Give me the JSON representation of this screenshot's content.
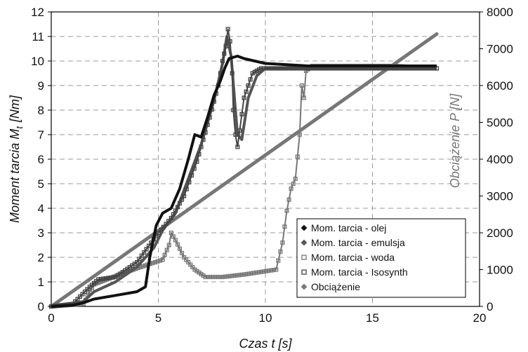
{
  "chart_data": {
    "type": "line",
    "xlabel": "Czas  t  [s]",
    "ylabel": "Moment tarcia  M",
    "ylabel_sub": "t",
    "ylabel_unit": "[Nm]",
    "y2label": "Obciążenie P [N]",
    "xlim": [
      0,
      20
    ],
    "ylim": [
      0,
      12
    ],
    "y2lim": [
      0,
      8000
    ],
    "xticks": [
      "0",
      "5",
      "10",
      "15",
      "20"
    ],
    "yticks": [
      "0",
      "1",
      "2",
      "3",
      "4",
      "5",
      "6",
      "7",
      "8",
      "9",
      "10",
      "11",
      "12"
    ],
    "y2ticks": [
      "0",
      "1000",
      "2000",
      "3000",
      "4000",
      "5000",
      "6000",
      "7000",
      "8000"
    ],
    "grid": true,
    "legend_position": "bottom-right",
    "series": [
      {
        "name": "Mom. tarcia - olej",
        "axis": "left",
        "color": "#111111",
        "marker": "diamond",
        "points": [
          [
            0,
            0
          ],
          [
            1,
            0.05
          ],
          [
            1.5,
            0.15
          ],
          [
            2,
            0.3
          ],
          [
            3,
            0.45
          ],
          [
            4,
            0.6
          ],
          [
            4.4,
            0.8
          ],
          [
            4.6,
            2.0
          ],
          [
            4.9,
            3.3
          ],
          [
            5.2,
            3.8
          ],
          [
            5.6,
            4.0
          ],
          [
            6.0,
            4.8
          ],
          [
            6.4,
            6.0
          ],
          [
            6.7,
            7.0
          ],
          [
            7.0,
            6.9
          ],
          [
            7.3,
            7.7
          ],
          [
            7.6,
            8.6
          ],
          [
            7.9,
            9.2
          ],
          [
            8.1,
            9.7
          ],
          [
            8.3,
            10.1
          ],
          [
            8.7,
            10.2
          ],
          [
            9.0,
            10.1
          ],
          [
            10,
            9.9
          ],
          [
            12,
            9.8
          ],
          [
            14,
            9.8
          ],
          [
            16,
            9.8
          ],
          [
            18,
            9.8
          ]
        ]
      },
      {
        "name": "Mom. tarcia - emulsja",
        "axis": "left",
        "color": "#555555",
        "marker": "diamond",
        "points": [
          [
            0,
            0
          ],
          [
            1.5,
            0.2
          ],
          [
            2,
            0.6
          ],
          [
            3,
            1.0
          ],
          [
            4,
            1.6
          ],
          [
            4.8,
            2.4
          ],
          [
            5.2,
            3.1
          ],
          [
            5.8,
            3.8
          ],
          [
            6.4,
            5.2
          ],
          [
            7.0,
            6.6
          ],
          [
            7.6,
            8.4
          ],
          [
            8.0,
            9.9
          ],
          [
            8.2,
            11.0
          ],
          [
            8.4,
            10.2
          ],
          [
            8.6,
            8.0
          ],
          [
            8.7,
            7.0
          ],
          [
            8.9,
            6.8
          ],
          [
            9.2,
            8.5
          ],
          [
            9.6,
            9.4
          ],
          [
            10,
            9.7
          ],
          [
            12,
            9.7
          ],
          [
            14,
            9.7
          ],
          [
            16,
            9.7
          ],
          [
            18,
            9.7
          ]
        ]
      },
      {
        "name": "Mom. tarcia - woda",
        "axis": "left",
        "color": "#777777",
        "marker": "square",
        "points": [
          [
            0,
            0
          ],
          [
            1.5,
            0.1
          ],
          [
            1.8,
            0.6
          ],
          [
            2.0,
            0.9
          ],
          [
            2.6,
            1.1
          ],
          [
            3.5,
            1.4
          ],
          [
            4.5,
            1.7
          ],
          [
            5.2,
            1.9
          ],
          [
            5.5,
            2.5
          ],
          [
            5.6,
            3.0
          ],
          [
            5.8,
            2.7
          ],
          [
            6.2,
            2.0
          ],
          [
            6.7,
            1.5
          ],
          [
            7.2,
            1.2
          ],
          [
            8,
            1.2
          ],
          [
            9,
            1.3
          ],
          [
            10.5,
            1.5
          ],
          [
            10.8,
            2.6
          ],
          [
            11.0,
            3.9
          ],
          [
            11.2,
            4.8
          ],
          [
            11.4,
            5.2
          ],
          [
            11.6,
            7.0
          ],
          [
            11.7,
            9.0
          ],
          [
            11.8,
            8.5
          ],
          [
            11.9,
            9.6
          ],
          [
            12.2,
            9.8
          ],
          [
            14,
            9.8
          ],
          [
            16,
            9.8
          ],
          [
            18,
            9.7
          ]
        ]
      },
      {
        "name": "Mom. tarcia - Isosynth",
        "axis": "left",
        "color": "#444444",
        "marker": "square",
        "points": [
          [
            0,
            0
          ],
          [
            1,
            0.1
          ],
          [
            1.8,
            0.8
          ],
          [
            2.2,
            1.1
          ],
          [
            3.0,
            1.2
          ],
          [
            4.0,
            1.8
          ],
          [
            5.0,
            3.0
          ],
          [
            5.6,
            3.6
          ],
          [
            6.2,
            4.5
          ],
          [
            6.8,
            5.9
          ],
          [
            7.4,
            7.7
          ],
          [
            7.8,
            9.0
          ],
          [
            8.0,
            10.0
          ],
          [
            8.15,
            10.6
          ],
          [
            8.25,
            11.3
          ],
          [
            8.35,
            10.8
          ],
          [
            8.45,
            9.5
          ],
          [
            8.5,
            8.0
          ],
          [
            8.6,
            7.0
          ],
          [
            8.7,
            6.5
          ],
          [
            9.0,
            8.5
          ],
          [
            9.4,
            9.5
          ],
          [
            9.8,
            9.7
          ],
          [
            12,
            9.7
          ],
          [
            14,
            9.7
          ],
          [
            16,
            9.7
          ],
          [
            18,
            9.7
          ]
        ]
      },
      {
        "name": "Obciążenie",
        "axis": "right",
        "color": "#777777",
        "marker": "diamond",
        "points": [
          [
            0,
            0
          ],
          [
            18,
            7400
          ]
        ]
      }
    ]
  }
}
